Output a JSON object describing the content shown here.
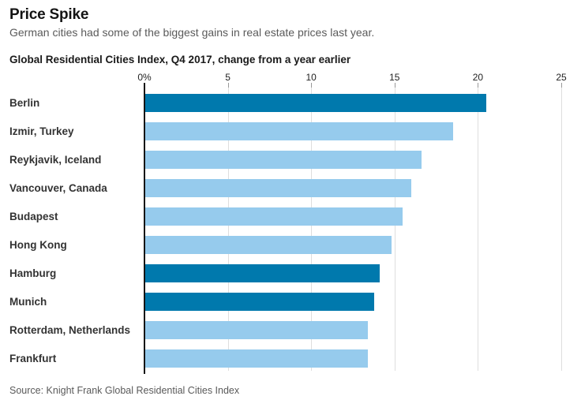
{
  "header": {
    "title": "Price Spike",
    "subtitle": "German cities had some of the biggest gains in real estate prices last year.",
    "chart_heading": "Global Residential Cities Index, Q4 2017, change from a year earlier"
  },
  "chart_data": {
    "type": "bar",
    "orientation": "horizontal",
    "title": "Global Residential Cities Index, Q4 2017, change from a year earlier",
    "categories": [
      "Berlin",
      "Izmir, Turkey",
      "Reykjavik, Iceland",
      "Vancouver, Canada",
      "Budapest",
      "Hong Kong",
      "Hamburg",
      "Munich",
      "Rotterdam, Netherlands",
      "Frankfurt"
    ],
    "values": [
      20.5,
      18.5,
      16.6,
      16.0,
      15.5,
      14.8,
      14.1,
      13.8,
      13.4,
      13.4
    ],
    "highlight": [
      true,
      false,
      false,
      false,
      false,
      false,
      true,
      true,
      false,
      false
    ],
    "highlight_color": "#0079ad",
    "bar_color": "#96cbed",
    "unit": "%",
    "xlim": [
      0,
      25
    ],
    "tick_values": [
      0,
      5,
      10,
      15,
      20,
      25
    ],
    "tick_labels": [
      "0%",
      "5",
      "10",
      "15",
      "20",
      "25"
    ],
    "grid": true,
    "legend": "none",
    "xlabel": "",
    "ylabel": ""
  },
  "footer": {
    "source": "Source: Knight Frank Global Residential Cities Index"
  }
}
